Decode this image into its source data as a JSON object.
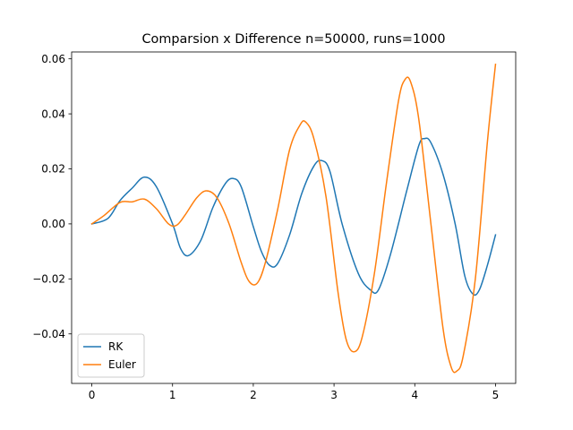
{
  "chart_data": {
    "type": "line",
    "title": "Comparsion x Difference n=50000, runs=1000",
    "xlabel": "",
    "ylabel": "",
    "xlim": [
      -0.25,
      5.25
    ],
    "ylim": [
      -0.058,
      0.0625
    ],
    "x_ticks": [
      0,
      1,
      2,
      3,
      4,
      5
    ],
    "x_tick_labels": [
      "0",
      "1",
      "2",
      "3",
      "4",
      "5"
    ],
    "y_ticks": [
      -0.04,
      -0.02,
      0.0,
      0.02,
      0.04,
      0.06
    ],
    "y_tick_labels": [
      "−0.04",
      "−0.02",
      "0.00",
      "0.02",
      "0.04",
      "0.06"
    ],
    "grid": false,
    "legend_position": "lower-left",
    "series": [
      {
        "name": "RK",
        "color": "#1f77b4",
        "points": [
          [
            0.0,
            0.0
          ],
          [
            0.2,
            0.002
          ],
          [
            0.35,
            0.0085
          ],
          [
            0.5,
            0.013
          ],
          [
            0.65,
            0.017
          ],
          [
            0.8,
            0.0135
          ],
          [
            1.0,
            0.0
          ],
          [
            1.1,
            -0.009
          ],
          [
            1.2,
            -0.0115
          ],
          [
            1.35,
            -0.006
          ],
          [
            1.5,
            0.006
          ],
          [
            1.65,
            0.0145
          ],
          [
            1.75,
            0.0165
          ],
          [
            1.85,
            0.0135
          ],
          [
            2.0,
            -0.001
          ],
          [
            2.1,
            -0.01
          ],
          [
            2.2,
            -0.015
          ],
          [
            2.3,
            -0.0145
          ],
          [
            2.45,
            -0.004
          ],
          [
            2.6,
            0.011
          ],
          [
            2.75,
            0.021
          ],
          [
            2.85,
            0.023
          ],
          [
            2.95,
            0.019
          ],
          [
            3.1,
            0.0
          ],
          [
            3.3,
            -0.018
          ],
          [
            3.45,
            -0.024
          ],
          [
            3.55,
            -0.024
          ],
          [
            3.7,
            -0.011
          ],
          [
            3.9,
            0.012
          ],
          [
            4.05,
            0.0285
          ],
          [
            4.12,
            0.031
          ],
          [
            4.2,
            0.0295
          ],
          [
            4.35,
            0.018
          ],
          [
            4.5,
            0.0
          ],
          [
            4.62,
            -0.019
          ],
          [
            4.72,
            -0.0255
          ],
          [
            4.8,
            -0.024
          ],
          [
            4.9,
            -0.015
          ],
          [
            5.0,
            -0.004
          ]
        ]
      },
      {
        "name": "Euler",
        "color": "#ff7f0e",
        "points": [
          [
            0.0,
            0.0
          ],
          [
            0.15,
            0.003
          ],
          [
            0.35,
            0.0078
          ],
          [
            0.5,
            0.008
          ],
          [
            0.65,
            0.009
          ],
          [
            0.8,
            0.0055
          ],
          [
            0.95,
            0.0
          ],
          [
            1.05,
            -0.0005
          ],
          [
            1.15,
            0.003
          ],
          [
            1.3,
            0.0095
          ],
          [
            1.42,
            0.012
          ],
          [
            1.55,
            0.0095
          ],
          [
            1.7,
            0.0
          ],
          [
            1.85,
            -0.014
          ],
          [
            1.95,
            -0.021
          ],
          [
            2.05,
            -0.0215
          ],
          [
            2.15,
            -0.014
          ],
          [
            2.3,
            0.005
          ],
          [
            2.45,
            0.027
          ],
          [
            2.58,
            0.036
          ],
          [
            2.65,
            0.037
          ],
          [
            2.75,
            0.031
          ],
          [
            2.9,
            0.01
          ],
          [
            3.05,
            -0.025
          ],
          [
            3.15,
            -0.042
          ],
          [
            3.25,
            -0.0465
          ],
          [
            3.35,
            -0.041
          ],
          [
            3.5,
            -0.018
          ],
          [
            3.65,
            0.015
          ],
          [
            3.8,
            0.045
          ],
          [
            3.88,
            0.0525
          ],
          [
            3.95,
            0.0515
          ],
          [
            4.05,
            0.038
          ],
          [
            4.2,
            0.0
          ],
          [
            4.35,
            -0.038
          ],
          [
            4.45,
            -0.052
          ],
          [
            4.52,
            -0.0535
          ],
          [
            4.6,
            -0.048
          ],
          [
            4.75,
            -0.02
          ],
          [
            4.9,
            0.03
          ],
          [
            5.0,
            0.058
          ]
        ]
      }
    ]
  }
}
